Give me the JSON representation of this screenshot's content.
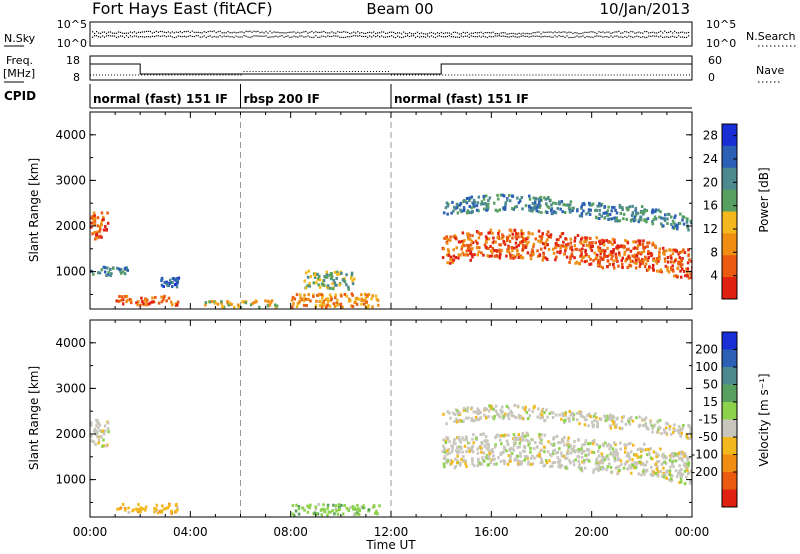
{
  "header": {
    "station": "Fort Hays East (fitACF)",
    "beam": "Beam 00",
    "date": "10/Jan/2013"
  },
  "noise_panel": {
    "left_label": "N.Sky",
    "right_label": "N.Search",
    "left_ticks": [
      "10^5",
      "10^0"
    ],
    "right_ticks": [
      "10^5",
      "10^0"
    ]
  },
  "freq_panel": {
    "left_label_1": "Freq.",
    "left_label_2": "[MHz]",
    "right_label": "Nave",
    "left_ticks": [
      "18",
      "8"
    ],
    "right_ticks": [
      "60",
      "0"
    ]
  },
  "cpid": {
    "label": "CPID",
    "segments": [
      {
        "name": "normal (fast) 151 IF",
        "start_h": 0,
        "end_h": 6
      },
      {
        "name": "rbsp 200 IF",
        "start_h": 6,
        "end_h": 12
      },
      {
        "name": "normal (fast) 151 IF",
        "start_h": 12,
        "end_h": 24
      }
    ]
  },
  "chart_data": [
    {
      "type": "heatmap",
      "title": "",
      "xlabel": "",
      "ylabel": "Slant Range [km]",
      "xlim": [
        0,
        24
      ],
      "ylim": [
        180,
        4500
      ],
      "yticks": [
        1000,
        2000,
        3000,
        4000
      ],
      "colorbar": {
        "label": "Power [dB]",
        "ticks": [
          "4",
          "8",
          "12",
          "16",
          "20",
          "24",
          "28"
        ],
        "range": [
          0,
          30
        ],
        "colors": [
          "#1a2ed6",
          "#2b60b4",
          "#4c8a8f",
          "#58a061",
          "#f2b81e",
          "#ef8e13",
          "#ea5b10",
          "#e02010"
        ]
      },
      "echo_regions": [
        {
          "t0": 0.0,
          "t1": 0.7,
          "r0": 1700,
          "r1": 2300,
          "level": 6
        },
        {
          "t0": 0.0,
          "t1": 1.5,
          "r0": 900,
          "r1": 1100,
          "level": 2
        },
        {
          "t0": 1.0,
          "t1": 3.5,
          "r0": 250,
          "r1": 450,
          "level": 6
        },
        {
          "t0": 2.8,
          "t1": 3.5,
          "r0": 650,
          "r1": 850,
          "level": 1
        },
        {
          "t0": 4.5,
          "t1": 7.5,
          "r0": 200,
          "r1": 350,
          "level": 4
        },
        {
          "t0": 8.0,
          "t1": 11.5,
          "r0": 200,
          "r1": 500,
          "level": 5
        },
        {
          "t0": 8.5,
          "t1": 10.5,
          "r0": 600,
          "r1": 1000,
          "level": 3
        },
        {
          "t0": 14.0,
          "t1": 24.0,
          "r0": 1150,
          "r1": 1800,
          "level": 6
        },
        {
          "t0": 14.0,
          "t1": 24.0,
          "r0": 2200,
          "r1": 2550,
          "level": 2
        }
      ]
    },
    {
      "type": "heatmap",
      "title": "",
      "xlabel": "Time UT",
      "ylabel": "Slant Range [km]",
      "xlim": [
        0,
        24
      ],
      "ylim": [
        180,
        4500
      ],
      "yticks": [
        1000,
        2000,
        3000,
        4000
      ],
      "xticks": [
        "00:00",
        "04:00",
        "08:00",
        "12:00",
        "16:00",
        "20:00",
        "00:00"
      ],
      "colorbar": {
        "label": "Velocity [m s⁻¹]",
        "ticks": [
          "200",
          "100",
          "50",
          "15",
          "-15",
          "-50",
          "-100",
          "-200"
        ],
        "range": [
          -250,
          250
        ],
        "colors": [
          "#1a2ed6",
          "#2b60b4",
          "#4c8a8f",
          "#58a061",
          "#8cd24a",
          "#c8c6bd",
          "#f2b81e",
          "#ef8e13",
          "#ea5b10",
          "#e02010"
        ]
      },
      "echo_regions": [
        {
          "t0": 0.0,
          "t1": 0.7,
          "r0": 1700,
          "r1": 2300,
          "level": 0
        },
        {
          "t0": 1.0,
          "t1": 3.5,
          "r0": 250,
          "r1": 450,
          "level": 1
        },
        {
          "t0": 8.0,
          "t1": 11.5,
          "r0": 200,
          "r1": 450,
          "level": -1
        },
        {
          "t0": 14.0,
          "t1": 24.0,
          "r0": 1200,
          "r1": 1900,
          "level": 0
        },
        {
          "t0": 14.0,
          "t1": 24.0,
          "r0": 2200,
          "r1": 2500,
          "level": 0
        }
      ]
    }
  ]
}
